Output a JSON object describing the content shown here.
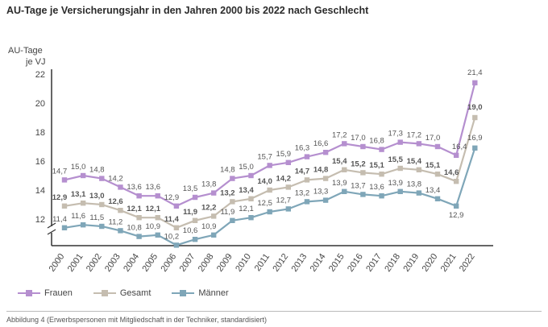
{
  "header": {
    "title": "AU-Tage je Versicherungsjahr in den Jahren 2000 bis 2022 nach Geschlecht",
    "ylabel_line1": "AU-Tage",
    "ylabel_line2": "je VJ"
  },
  "caption": "Abbildung 4 (Erwerbspersonen mit Mitgliedschaft in der Techniker, standardisiert)",
  "chart_data": {
    "type": "line",
    "title": "AU-Tage je Versicherungsjahr in den Jahren 2000 bis 2022 nach Geschlecht",
    "ylabel": "AU-Tage je VJ",
    "xlabel": "",
    "ylim": [
      10.4,
      22.4
    ],
    "yticks": [
      12,
      14,
      16,
      18,
      20,
      22
    ],
    "axis_break": true,
    "grid": false,
    "legend_position": "bottom-left",
    "categories": [
      "2000",
      "2001",
      "2002",
      "2003",
      "2004",
      "2005",
      "2006",
      "2007",
      "2008",
      "2009",
      "2010",
      "2011",
      "2012",
      "2013",
      "2014",
      "2015",
      "2016",
      "2017",
      "2018",
      "2019",
      "2020",
      "2021",
      "2022"
    ],
    "series": [
      {
        "name": "Frauen",
        "color": "#b58fcf",
        "label_bold": false,
        "values": [
          14.7,
          15.0,
          14.8,
          14.2,
          13.6,
          13.6,
          12.9,
          13.5,
          13.8,
          14.8,
          15.0,
          15.7,
          15.9,
          16.3,
          16.6,
          17.2,
          17.0,
          16.8,
          17.3,
          17.2,
          17.0,
          16.4,
          21.4
        ]
      },
      {
        "name": "Gesamt",
        "color": "#c5bdb0",
        "label_bold": true,
        "values": [
          12.9,
          13.1,
          13.0,
          12.6,
          12.1,
          12.1,
          11.4,
          11.9,
          12.2,
          13.2,
          13.4,
          14.0,
          14.2,
          14.7,
          14.8,
          15.4,
          15.2,
          15.1,
          15.5,
          15.4,
          15.1,
          14.6,
          19.0
        ]
      },
      {
        "name": "Männer",
        "color": "#7fa6b8",
        "label_bold": false,
        "values": [
          11.4,
          11.6,
          11.5,
          11.2,
          10.8,
          10.9,
          10.2,
          10.6,
          10.9,
          11.9,
          12.1,
          12.5,
          12.7,
          13.2,
          13.3,
          13.9,
          13.7,
          13.6,
          13.9,
          13.8,
          13.4,
          12.9,
          16.9
        ]
      }
    ]
  }
}
